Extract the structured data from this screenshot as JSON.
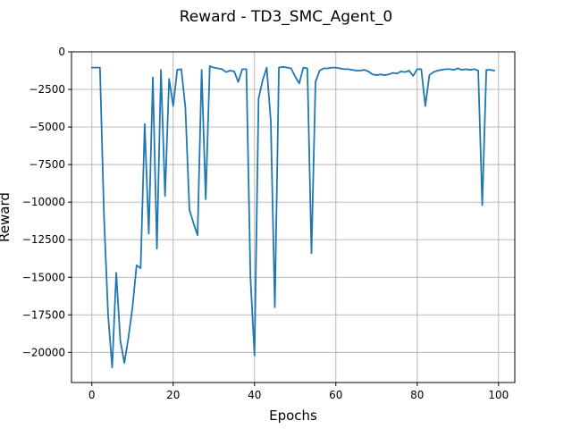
{
  "chart_data": {
    "type": "line",
    "title": "Reward - TD3_SMC_Agent_0",
    "xlabel": "Epochs",
    "ylabel": "Reward",
    "xlim": [
      -5,
      104
    ],
    "ylim": [
      -22000,
      0
    ],
    "grid": true,
    "series_color": "#1f77b4",
    "xticks": [
      0,
      20,
      40,
      60,
      80,
      100
    ],
    "xtick_labels": [
      "0",
      "20",
      "40",
      "60",
      "80",
      "100"
    ],
    "yticks": [
      0,
      -2500,
      -5000,
      -7500,
      -10000,
      -12500,
      -15000,
      -17500,
      -20000
    ],
    "ytick_labels": [
      "0",
      "−2500",
      "−5000",
      "−7500",
      "−10000",
      "−12500",
      "−15000",
      "−17500",
      "−20000"
    ],
    "series": [
      {
        "x": [
          0,
          1,
          2,
          3,
          4,
          5,
          6,
          7,
          8,
          9,
          10,
          11,
          12,
          13,
          14,
          15,
          16,
          17,
          18,
          19,
          20,
          21,
          22,
          23,
          24,
          25,
          26,
          27,
          28,
          29,
          30,
          31,
          32,
          33,
          34,
          35,
          36,
          37,
          38,
          39,
          40,
          41,
          42,
          43,
          44,
          45,
          46,
          47,
          48,
          49,
          50,
          51,
          52,
          53,
          54,
          55,
          56,
          57,
          58,
          59,
          60,
          61,
          62,
          63,
          64,
          65,
          66,
          67,
          68,
          69,
          70,
          71,
          72,
          73,
          74,
          75,
          76,
          77,
          78,
          79,
          80,
          81,
          82,
          83,
          84,
          85,
          86,
          87,
          88,
          89,
          90,
          91,
          92,
          93,
          94,
          95,
          96,
          97,
          98,
          99
        ],
        "y": [
          -1050,
          -1050,
          -1050,
          -11000,
          -17500,
          -21000,
          -14700,
          -19200,
          -20700,
          -19000,
          -17000,
          -14200,
          -14400,
          -4800,
          -12100,
          -1700,
          -13100,
          -1200,
          -9600,
          -1800,
          -3600,
          -1200,
          -1150,
          -3700,
          -10500,
          -11400,
          -12200,
          -1200,
          -9800,
          -950,
          -1050,
          -1100,
          -1150,
          -1350,
          -1250,
          -1300,
          -2000,
          -1150,
          -1150,
          -15000,
          -20200,
          -3100,
          -1900,
          -1050,
          -4600,
          -17000,
          -1050,
          -1000,
          -1050,
          -1100,
          -1650,
          -2100,
          -1050,
          -1100,
          -13400,
          -2000,
          -1250,
          -1100,
          -1100,
          -1050,
          -1050,
          -1100,
          -1150,
          -1150,
          -1200,
          -1250,
          -1250,
          -1200,
          -1300,
          -1500,
          -1550,
          -1500,
          -1550,
          -1500,
          -1400,
          -1450,
          -1300,
          -1350,
          -1250,
          -1600,
          -1150,
          -1150,
          -3600,
          -1550,
          -1350,
          -1250,
          -1200,
          -1150,
          -1150,
          -1200,
          -1100,
          -1200,
          -1150,
          -1200,
          -1150,
          -1250,
          -10200,
          -1200,
          -1200,
          -1250
        ]
      }
    ]
  }
}
